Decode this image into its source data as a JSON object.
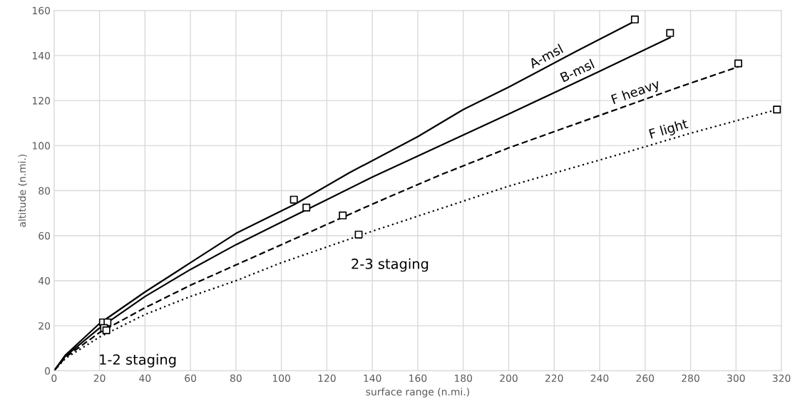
{
  "chart_data": {
    "type": "line",
    "xlabel": "surface range (n.mi.)",
    "ylabel": "altitude (n.mi.)",
    "xlim": [
      0,
      320
    ],
    "ylim": [
      0,
      160
    ],
    "xticks": [
      0,
      20,
      40,
      60,
      80,
      100,
      120,
      140,
      160,
      180,
      200,
      220,
      240,
      260,
      280,
      300,
      320
    ],
    "yticks": [
      0,
      20,
      40,
      60,
      80,
      100,
      120,
      140,
      160
    ],
    "grid": true,
    "legend": false,
    "series": [
      {
        "name": "A-msl",
        "color": "#000000",
        "line_style": "solid",
        "marker": "none",
        "x": [
          0,
          5,
          20,
          40,
          60,
          80,
          106,
          130,
          160,
          180,
          200,
          230,
          255
        ],
        "values": [
          0,
          7,
          21,
          35,
          48,
          61,
          74,
          88,
          104,
          116,
          126,
          142,
          155
        ]
      },
      {
        "name": "B-msl",
        "color": "#000000",
        "line_style": "solid",
        "marker": "none",
        "x": [
          0,
          5,
          20,
          40,
          60,
          80,
          100,
          120,
          140,
          170,
          200,
          240,
          271
        ],
        "values": [
          0,
          6.5,
          19,
          33,
          45,
          56,
          66,
          76,
          86,
          100,
          114,
          133,
          148
        ]
      },
      {
        "name": "F heavy",
        "color": "#000000",
        "line_style": "dashed",
        "marker": "none",
        "x": [
          0,
          5,
          20,
          40,
          60,
          80,
          100,
          120,
          140,
          170,
          200,
          250,
          275,
          301
        ],
        "values": [
          0,
          6,
          17,
          28,
          38,
          47,
          56,
          65,
          74,
          87,
          99,
          117,
          126,
          135
        ]
      },
      {
        "name": "F light",
        "color": "#000000",
        "line_style": "dotted",
        "marker": "none",
        "x": [
          0,
          5,
          20,
          40,
          60,
          80,
          100,
          120,
          140,
          170,
          200,
          250,
          280,
          318
        ],
        "values": [
          0,
          5.5,
          15,
          25,
          33,
          40,
          48,
          55,
          62,
          72,
          82,
          96.5,
          105.5,
          116
        ]
      },
      {
        "type": "scatter",
        "color": "#000000",
        "marker": "square",
        "x": [
          21.5,
          23.5,
          22,
          23,
          105.5,
          111,
          127,
          134,
          255.5,
          271,
          301,
          318
        ],
        "values": [
          21.5,
          21.5,
          19,
          18,
          76,
          72.5,
          69,
          60.5,
          156,
          150,
          136.5,
          116
        ]
      }
    ],
    "annotations": [
      {
        "text": "1-2 staging",
        "x": 23,
        "y": 18
      },
      {
        "text": "2-3 staging",
        "x": 134,
        "y": 60.5
      }
    ]
  }
}
